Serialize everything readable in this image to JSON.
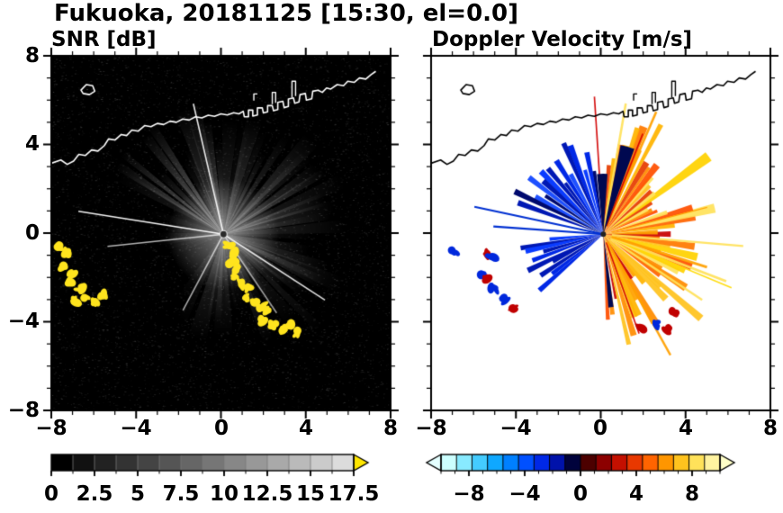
{
  "title": "Fukuoka, 20181125 [15:30, el=0.0]",
  "chart_data": [
    {
      "type": "heatmap",
      "variant": "radar-ppi",
      "title": "SNR [dB]",
      "units": "dB",
      "xlabel": "",
      "ylabel": "",
      "xlim": [
        -8,
        8
      ],
      "ylim": [
        -8,
        8
      ],
      "xticks": [
        -8,
        -4,
        0,
        4,
        8
      ],
      "yticks": [
        8,
        4,
        0,
        -4,
        -8
      ],
      "xtick_labels": [
        "−8",
        "−4",
        "0",
        "4",
        "8"
      ],
      "ytick_labels": [
        "8",
        "4",
        "0",
        "−4",
        "−8"
      ],
      "minor_tick_step": 1,
      "grid": false,
      "background": "#000000",
      "coast_color": "#ffffff",
      "colorbar": {
        "orientation": "horizontal",
        "min": 0,
        "max": 17.5,
        "tick_values": [
          0,
          2.5,
          5,
          7.5,
          10,
          12.5,
          15,
          17.5
        ],
        "tick_labels": [
          "0",
          "2.5",
          "5",
          "7.5",
          "10",
          "12.5",
          "15",
          "17.5"
        ],
        "minor_step": 1.25,
        "n_steps": 14,
        "color_start": "#000000",
        "color_end": "#dcdcdc",
        "over_arrow_color": "#ffe600"
      },
      "radar": {
        "center": [
          0.12,
          -0.05
        ],
        "max_range": 7.5,
        "noise_points": 6500,
        "fans": [
          {
            "a0": 97,
            "a1": 153,
            "n": 12,
            "rmin": 3.6,
            "rmax": 6.2,
            "imin": 0.1,
            "imax": 0.4
          },
          {
            "a0": 55,
            "a1": 95,
            "n": 7,
            "rmin": 3.2,
            "rmax": 5.6,
            "imin": 0.08,
            "imax": 0.26
          },
          {
            "a0": -5,
            "a1": 50,
            "n": 10,
            "rmin": 3.6,
            "rmax": 6.6,
            "imin": 0.1,
            "imax": 0.32
          },
          {
            "a0": -70,
            "a1": -8,
            "n": 11,
            "rmin": 3.6,
            "rmax": 7.0,
            "imin": 0.1,
            "imax": 0.34
          },
          {
            "a0": -125,
            "a1": -72,
            "n": 7,
            "rmin": 2.8,
            "rmax": 5.4,
            "imin": 0.06,
            "imax": 0.22
          },
          {
            "a0": 158,
            "a1": 205,
            "n": 5,
            "rmin": 2.4,
            "rmax": 4.4,
            "imin": 0.05,
            "imax": 0.16
          }
        ],
        "spokes": [
          {
            "a": 171,
            "r": 6.8,
            "i": 0.95
          },
          {
            "a": 186,
            "r": 5.4,
            "i": 0.7
          },
          {
            "a": -33,
            "r": 5.6,
            "i": 0.85
          },
          {
            "a": -56,
            "r": 4.4,
            "i": 0.6
          },
          {
            "a": 103,
            "r": 6.2,
            "i": 0.9
          },
          {
            "a": 242,
            "r": 4.0,
            "i": 0.65
          }
        ],
        "clutter_color": "#ffe41e",
        "clutter": [
          [
            -7.6,
            -0.65
          ],
          [
            -7.3,
            -0.95
          ],
          [
            -7.45,
            -1.45
          ],
          [
            -7.0,
            -1.75
          ],
          [
            -7.15,
            -2.2
          ],
          [
            -6.65,
            -2.5
          ],
          [
            -6.35,
            -2.9
          ],
          [
            -5.95,
            -3.15
          ],
          [
            -6.8,
            -3.05
          ],
          [
            -5.6,
            -2.75
          ],
          [
            0.35,
            -0.55
          ],
          [
            0.55,
            -0.9
          ],
          [
            0.5,
            -1.3
          ],
          [
            0.8,
            -1.6
          ],
          [
            0.72,
            -2.0
          ],
          [
            1.0,
            -2.3
          ],
          [
            1.3,
            -2.5
          ],
          [
            1.2,
            -2.9
          ],
          [
            1.6,
            -3.1
          ],
          [
            1.9,
            -3.3
          ],
          [
            2.2,
            -3.55
          ],
          [
            2.0,
            -3.95
          ],
          [
            2.5,
            -4.15
          ],
          [
            2.9,
            -4.35
          ],
          [
            3.2,
            -4.1
          ],
          [
            3.5,
            -4.5
          ]
        ]
      }
    },
    {
      "type": "heatmap",
      "variant": "radar-ppi",
      "title": "Doppler Velocity [m/s]",
      "units": "m/s",
      "xlabel": "",
      "ylabel": "",
      "xlim": [
        -8,
        8
      ],
      "ylim": [
        -8,
        8
      ],
      "xticks": [
        -8,
        -4,
        0,
        4,
        8
      ],
      "yticks": [
        8,
        4,
        0,
        -4,
        -8
      ],
      "xtick_labels": [
        "−8",
        "−4",
        "0",
        "4",
        "8"
      ],
      "ytick_labels": [
        "8",
        "4",
        "0",
        "−4",
        "−8"
      ],
      "minor_tick_step": 1,
      "grid": false,
      "background": "#ffffff",
      "coast_color": "#000000",
      "colorbar": {
        "orientation": "horizontal",
        "min": -10,
        "max": 10,
        "tick_values": [
          -8,
          -4,
          0,
          4,
          8
        ],
        "tick_labels": [
          "−8",
          "−4",
          "0",
          "4",
          "8"
        ],
        "minor_step": 1,
        "colors": [
          "#ccffff",
          "#88eaff",
          "#44ccff",
          "#0fa8ff",
          "#0080ff",
          "#0050ff",
          "#0028e6",
          "#0012aa",
          "#00023c",
          "#4c0000",
          "#8c0000",
          "#c41000",
          "#e83800",
          "#ff6400",
          "#ff9600",
          "#ffc31e",
          "#ffe25a",
          "#fff3a0"
        ],
        "under_arrow_color": "#e4ffff",
        "over_arrow_color": "#ffffc8"
      },
      "radar": {
        "center": [
          0.12,
          -0.05
        ],
        "blue_fans": [
          {
            "a0": 96,
            "a1": 161,
            "n": 16,
            "rmin": 2.9,
            "rmax": 4.7
          },
          {
            "a0": 183,
            "a1": 223,
            "n": 10,
            "rmin": 2.4,
            "rmax": 4.0
          }
        ],
        "blue_palette": [
          "#0018b4",
          "#0028e6",
          "#0a3cff",
          "#0018b4",
          "#000a6e",
          "#1e50ff",
          "#0028e6",
          "#000a6e"
        ],
        "blue_spokes": [
          {
            "a": 168,
            "r": 6.1
          },
          {
            "a": 176,
            "r": 5.1
          }
        ],
        "warm_fan": {
          "a0": -88,
          "a1": 94,
          "n": 55,
          "rmin": 2.1,
          "rmax": 4.5,
          "streak_rmax": 6.3
        },
        "warm_palette": [
          "#c80000",
          "#e63c00",
          "#ff6400",
          "#ff8c00",
          "#ffb400",
          "#ffd200",
          "#ff7800",
          "#ffc31e",
          "#e63c00",
          "#ffa000",
          "#ffe25a",
          "#ff5000"
        ],
        "streak_colors": [
          "#ffdc00",
          "#ffa000",
          "#d20000",
          "#ffe25a"
        ],
        "navy_accents": [
          {
            "a0": 86,
            "a1": 96,
            "r": 2.8
          },
          {
            "a0": 70,
            "a1": 79,
            "r": 4.2
          },
          {
            "a0": -86,
            "a1": -82,
            "r": 3.4
          }
        ],
        "clutter_red": "#c00000",
        "clutter_blue": "#0028dc",
        "clutter": [
          [
            -5.4,
            -0.9,
            "r"
          ],
          [
            -5.15,
            -1.05,
            "b"
          ],
          [
            -5.6,
            -1.9,
            "b"
          ],
          [
            -5.45,
            -2.1,
            "r"
          ],
          [
            -5.05,
            -2.55,
            "b"
          ],
          [
            -4.6,
            -3.0,
            "b"
          ],
          [
            -4.15,
            -3.45,
            "r"
          ],
          [
            -6.9,
            -0.85,
            "b"
          ],
          [
            1.9,
            -4.35,
            "r"
          ],
          [
            2.6,
            -4.05,
            "b"
          ],
          [
            3.15,
            -4.35,
            "r"
          ],
          [
            3.45,
            -3.6,
            "r"
          ]
        ]
      }
    }
  ],
  "coastline": {
    "main": [
      [
        -8.0,
        3.15
      ],
      [
        -7.55,
        3.3
      ],
      [
        -7.25,
        3.1
      ],
      [
        -6.95,
        3.25
      ],
      [
        -6.7,
        3.55
      ],
      [
        -6.4,
        3.5
      ],
      [
        -6.1,
        3.75
      ],
      [
        -5.8,
        3.7
      ],
      [
        -5.5,
        3.95
      ],
      [
        -5.3,
        4.25
      ],
      [
        -5.0,
        4.2
      ],
      [
        -4.7,
        4.45
      ],
      [
        -4.45,
        4.4
      ],
      [
        -4.2,
        4.65
      ],
      [
        -3.9,
        4.6
      ],
      [
        -3.6,
        4.85
      ],
      [
        -3.3,
        4.8
      ],
      [
        -3.0,
        4.95
      ],
      [
        -2.7,
        4.9
      ],
      [
        -2.4,
        5.05
      ],
      [
        -2.1,
        5.0
      ],
      [
        -1.8,
        5.15
      ],
      [
        -1.5,
        5.1
      ],
      [
        -1.2,
        5.25
      ],
      [
        -0.9,
        5.2
      ],
      [
        -0.6,
        5.32
      ],
      [
        -0.3,
        5.27
      ],
      [
        0.0,
        5.38
      ],
      [
        0.3,
        5.33
      ],
      [
        0.6,
        5.43
      ],
      [
        0.85,
        5.38
      ],
      [
        1.05,
        5.5
      ],
      [
        1.1,
        5.25
      ],
      [
        1.3,
        5.25
      ],
      [
        1.3,
        5.55
      ],
      [
        1.5,
        5.55
      ],
      [
        1.5,
        5.28
      ],
      [
        1.72,
        5.33
      ],
      [
        1.72,
        5.65
      ],
      [
        1.95,
        5.65
      ],
      [
        2.0,
        5.42
      ],
      [
        2.2,
        5.47
      ],
      [
        2.2,
        5.75
      ],
      [
        2.42,
        5.75
      ],
      [
        2.48,
        5.52
      ],
      [
        2.68,
        5.57
      ],
      [
        2.68,
        5.9
      ],
      [
        2.92,
        5.95
      ],
      [
        2.98,
        5.66
      ],
      [
        3.18,
        5.72
      ],
      [
        3.18,
        6.05
      ],
      [
        3.42,
        6.1
      ],
      [
        3.48,
        5.86
      ],
      [
        3.68,
        5.92
      ],
      [
        3.73,
        6.25
      ],
      [
        3.98,
        6.3
      ],
      [
        4.03,
        6.0
      ],
      [
        4.28,
        6.06
      ],
      [
        4.33,
        6.4
      ],
      [
        4.58,
        6.45
      ],
      [
        4.78,
        6.35
      ],
      [
        4.98,
        6.55
      ],
      [
        5.18,
        6.5
      ],
      [
        5.48,
        6.7
      ],
      [
        5.78,
        6.65
      ],
      [
        5.98,
        6.85
      ],
      [
        6.28,
        6.8
      ],
      [
        6.53,
        7.0
      ],
      [
        6.83,
        6.95
      ],
      [
        7.08,
        7.15
      ],
      [
        7.3,
        7.3
      ]
    ],
    "island": [
      [
        -6.6,
        6.45
      ],
      [
        -6.35,
        6.7
      ],
      [
        -6.05,
        6.65
      ],
      [
        -5.95,
        6.4
      ],
      [
        -6.2,
        6.25
      ],
      [
        -6.5,
        6.3
      ]
    ],
    "harbor": [
      [
        [
          3.35,
          6.12
        ],
        [
          3.35,
          6.85
        ],
        [
          3.52,
          6.85
        ],
        [
          3.52,
          6.18
        ]
      ],
      [
        [
          2.42,
          5.82
        ],
        [
          2.42,
          6.35
        ],
        [
          2.58,
          6.35
        ],
        [
          2.58,
          5.88
        ]
      ],
      [
        [
          1.55,
          5.98
        ],
        [
          1.55,
          6.28
        ],
        [
          1.72,
          6.28
        ]
      ]
    ]
  }
}
